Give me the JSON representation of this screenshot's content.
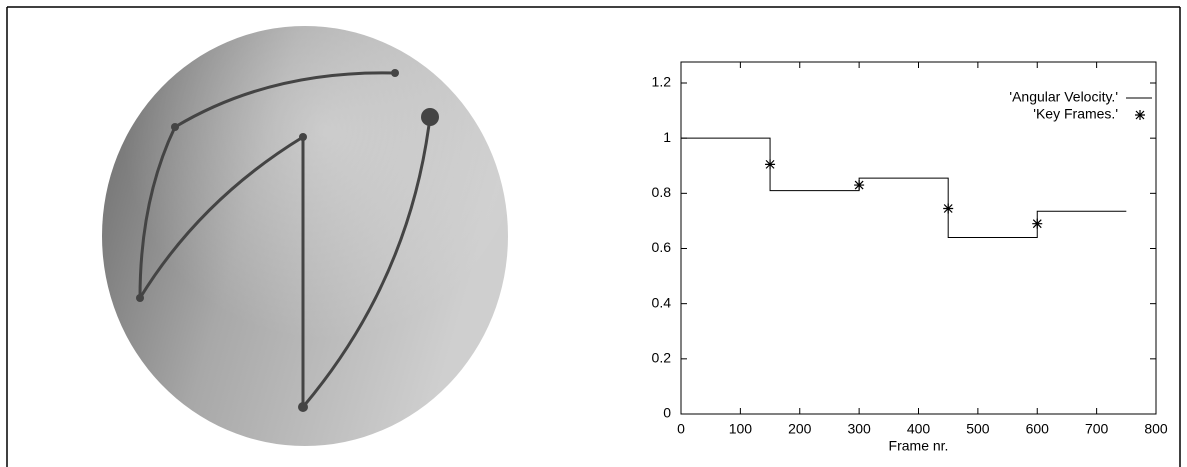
{
  "chart_data": {
    "type": "line",
    "xlabel": "Frame nr.",
    "xlim": [
      0,
      800
    ],
    "xticks": [
      0,
      100,
      200,
      300,
      400,
      500,
      600,
      700,
      800
    ],
    "ylim": [
      0,
      1.2
    ],
    "yticks": [
      0,
      0.2,
      0.4,
      0.6,
      0.8,
      1,
      1.2
    ],
    "legend": "upper right",
    "series": [
      {
        "name": "'Angular Velocity.'",
        "color": "#000000",
        "style": "line",
        "x": [
          0,
          150,
          150,
          300,
          300,
          450,
          450,
          600,
          600,
          750
        ],
        "values": [
          1,
          1,
          0.81,
          0.81,
          0.855,
          0.855,
          0.64,
          0.64,
          0.735,
          0.735
        ]
      },
      {
        "name": "'Key Frames.'",
        "color": "#000000",
        "style": "points",
        "x": [
          150,
          300,
          450,
          600
        ],
        "values": [
          0.905,
          0.83,
          0.745,
          0.69
        ]
      }
    ]
  }
}
